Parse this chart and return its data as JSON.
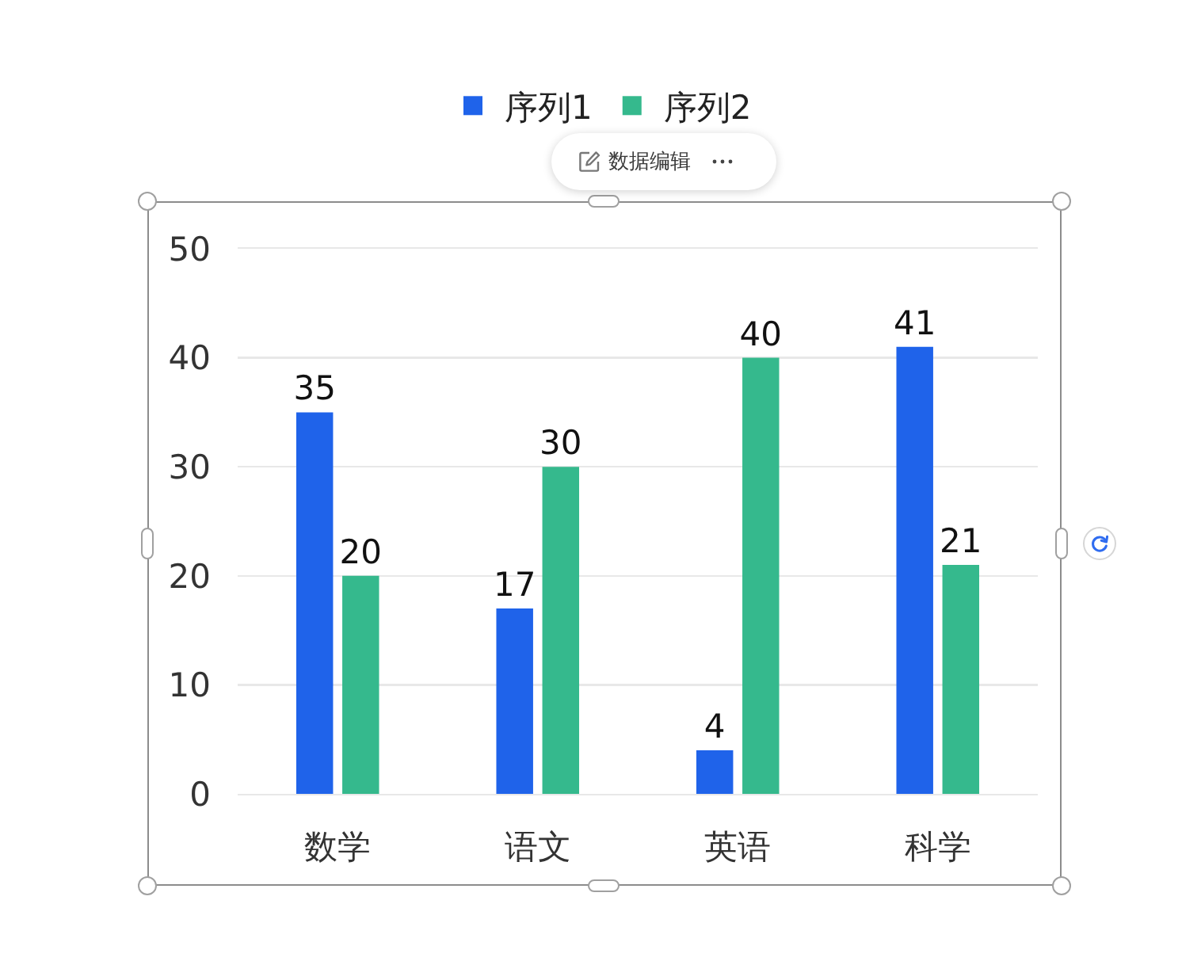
{
  "chart_data": {
    "type": "bar",
    "categories": [
      "数学",
      "语文",
      "英语",
      "科学"
    ],
    "series": [
      {
        "name": "序列1",
        "color": "#1f63ea",
        "values": [
          35,
          17,
          4,
          41
        ]
      },
      {
        "name": "序列2",
        "color": "#35b98d",
        "values": [
          20,
          30,
          40,
          21
        ]
      }
    ],
    "ylim": [
      0,
      50
    ],
    "yticks": [
      0,
      10,
      20,
      30,
      40,
      50
    ],
    "grid": "y",
    "legend": "top",
    "data_labels": true,
    "annotations": [
      "数据编辑"
    ]
  }
}
